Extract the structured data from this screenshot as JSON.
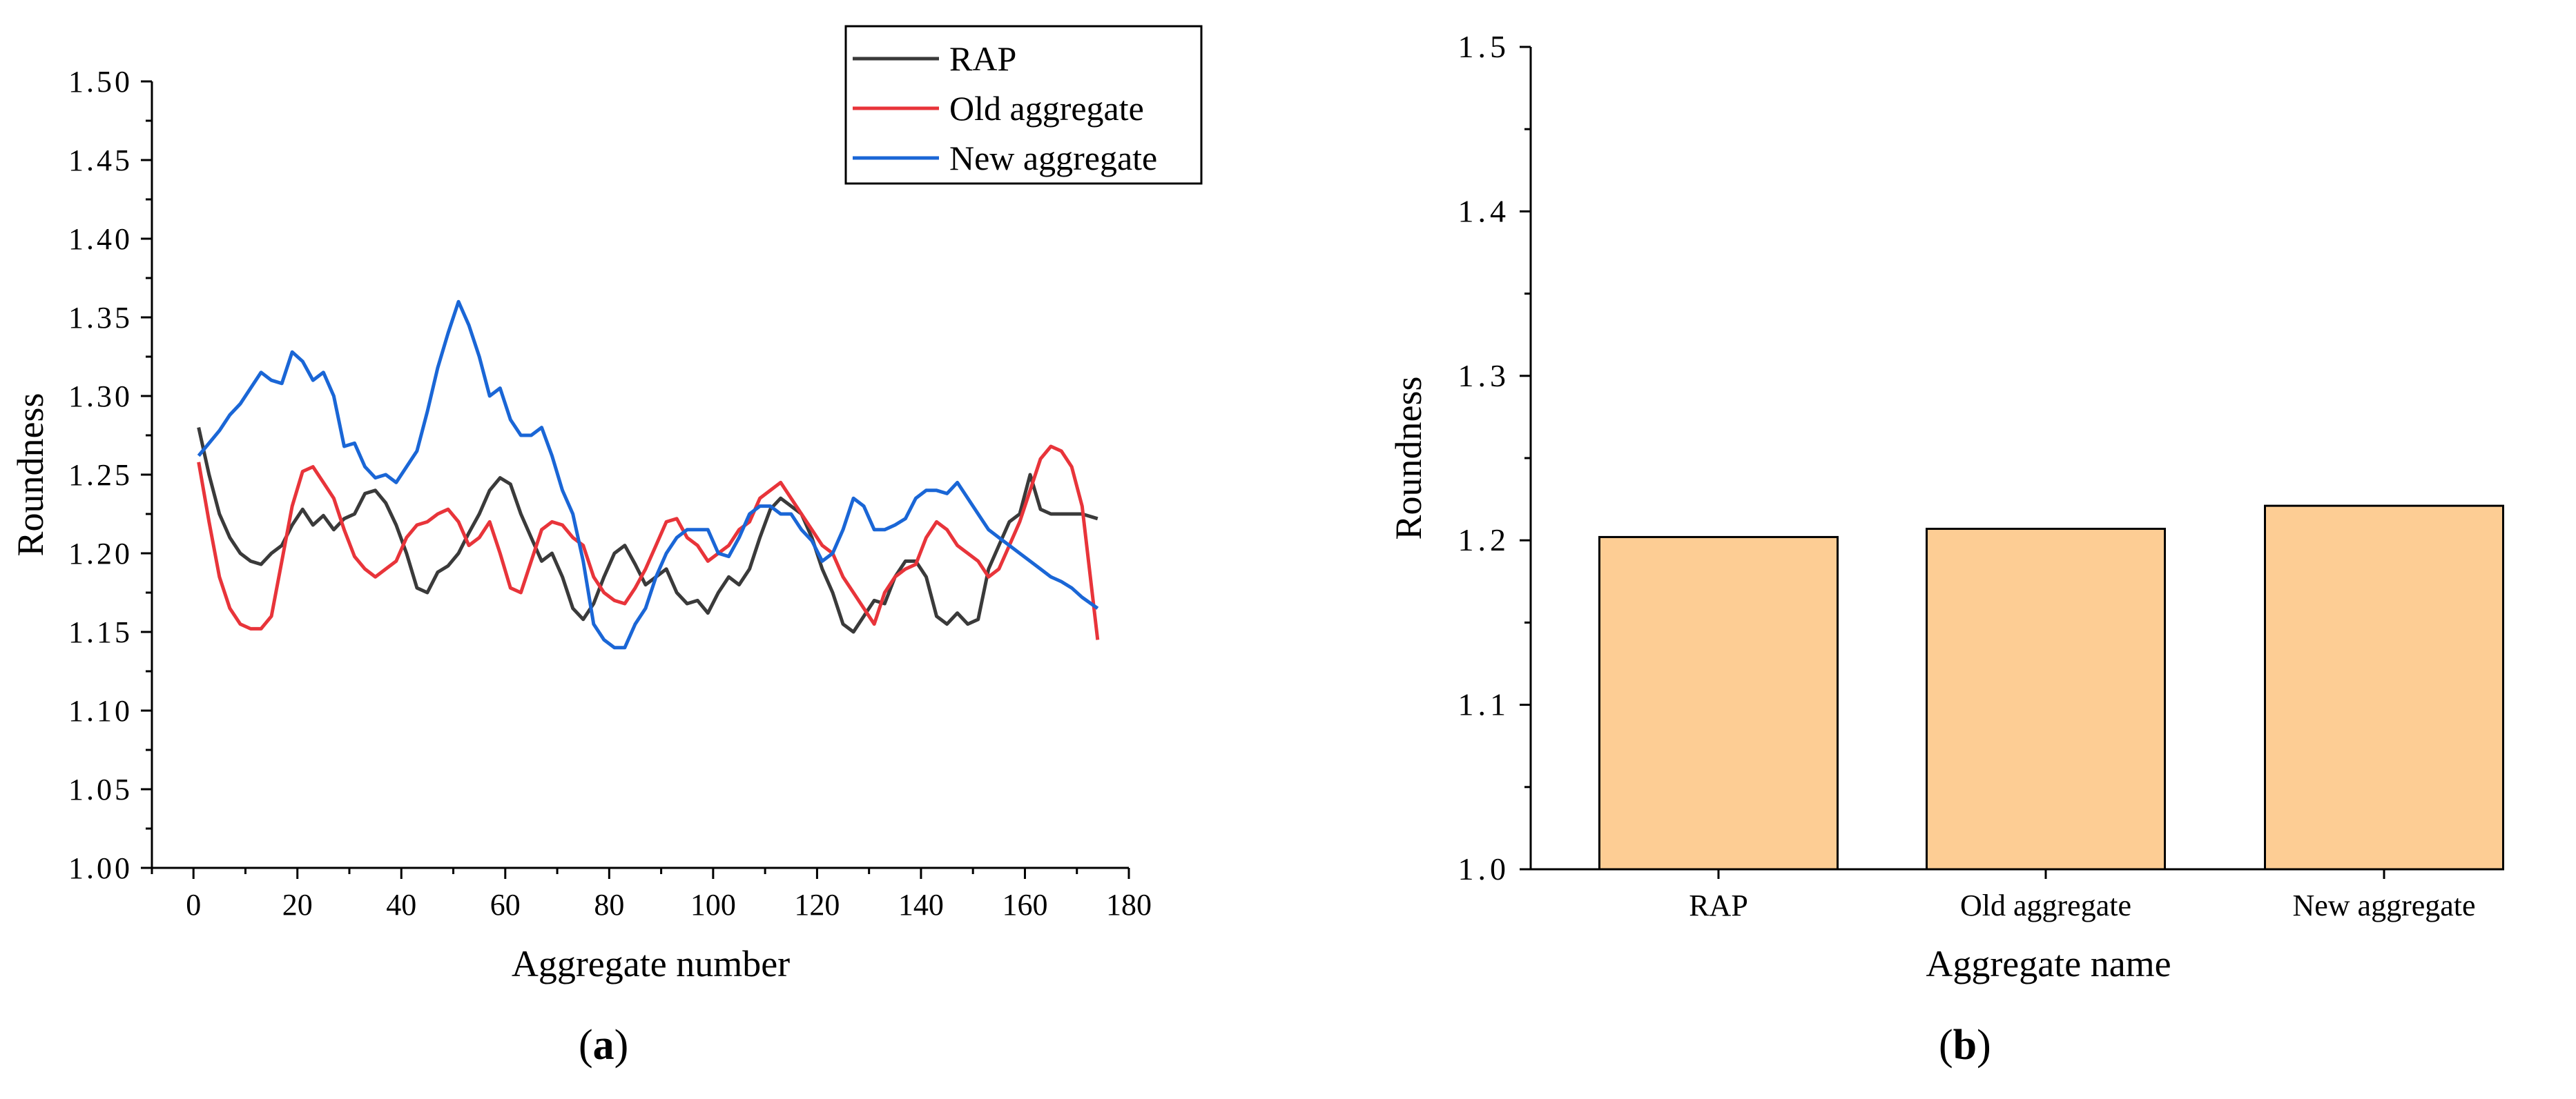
{
  "charts": [
    {
      "id": "a",
      "label": "a",
      "type": "line",
      "xlabel": "Aggregate number",
      "ylabel": "Roundness",
      "xlim": [
        -8,
        180
      ],
      "ylim": [
        1.0,
        1.5
      ],
      "xticks": [
        0,
        20,
        40,
        60,
        80,
        100,
        120,
        140,
        160,
        180
      ],
      "yticks": [
        "1.00",
        "1.05",
        "1.10",
        "1.15",
        "1.20",
        "1.25",
        "1.30",
        "1.35",
        "1.40",
        "1.45",
        "1.50"
      ],
      "legend_position": "top-right",
      "series": [
        {
          "name": "RAP",
          "color": "#3a3a3a",
          "x": [
            1,
            3,
            5,
            7,
            9,
            11,
            13,
            15,
            17,
            19,
            21,
            23,
            25,
            27,
            29,
            31,
            33,
            35,
            37,
            39,
            41,
            43,
            45,
            47,
            49,
            51,
            53,
            55,
            57,
            59,
            61,
            63,
            65,
            67,
            69,
            71,
            73,
            75,
            77,
            79,
            81,
            83,
            85,
            87,
            89,
            91,
            93,
            95,
            97,
            99,
            101,
            103,
            105,
            107,
            109,
            111,
            113,
            115,
            117,
            119,
            121,
            123,
            125,
            127,
            129,
            131,
            133,
            135,
            137,
            139,
            141,
            143,
            145,
            147,
            149,
            151,
            153,
            155,
            157,
            159,
            161,
            163,
            165,
            167,
            169,
            171,
            174
          ],
          "y": [
            1.28,
            1.25,
            1.225,
            1.21,
            1.2,
            1.195,
            1.193,
            1.2,
            1.205,
            1.218,
            1.228,
            1.218,
            1.224,
            1.215,
            1.222,
            1.225,
            1.238,
            1.24,
            1.232,
            1.218,
            1.2,
            1.178,
            1.175,
            1.188,
            1.192,
            1.2,
            1.213,
            1.225,
            1.24,
            1.248,
            1.244,
            1.225,
            1.21,
            1.195,
            1.2,
            1.185,
            1.165,
            1.158,
            1.168,
            1.185,
            1.2,
            1.205,
            1.193,
            1.18,
            1.185,
            1.19,
            1.175,
            1.168,
            1.17,
            1.162,
            1.175,
            1.185,
            1.18,
            1.19,
            1.21,
            1.228,
            1.235,
            1.23,
            1.225,
            1.21,
            1.19,
            1.175,
            1.155,
            1.15,
            1.16,
            1.17,
            1.168,
            1.185,
            1.195,
            1.195,
            1.185,
            1.16,
            1.155,
            1.162,
            1.155,
            1.158,
            1.19,
            1.205,
            1.22,
            1.225,
            1.25,
            1.228,
            1.225,
            1.225,
            1.225,
            1.225,
            1.222
          ]
        },
        {
          "name": "Old aggregate",
          "color": "#e8343a",
          "x": [
            1,
            3,
            5,
            7,
            9,
            11,
            13,
            15,
            17,
            19,
            21,
            23,
            25,
            27,
            29,
            31,
            33,
            35,
            37,
            39,
            41,
            43,
            45,
            47,
            49,
            51,
            53,
            55,
            57,
            59,
            61,
            63,
            65,
            67,
            69,
            71,
            73,
            75,
            77,
            79,
            81,
            83,
            85,
            87,
            89,
            91,
            93,
            95,
            97,
            99,
            101,
            103,
            105,
            107,
            109,
            111,
            113,
            115,
            117,
            119,
            121,
            123,
            125,
            127,
            129,
            131,
            133,
            135,
            137,
            139,
            141,
            143,
            145,
            147,
            149,
            151,
            153,
            155,
            157,
            159,
            161,
            163,
            165,
            167,
            169,
            171,
            174
          ],
          "y": [
            1.258,
            1.22,
            1.185,
            1.165,
            1.155,
            1.152,
            1.152,
            1.16,
            1.195,
            1.23,
            1.252,
            1.255,
            1.245,
            1.235,
            1.215,
            1.198,
            1.19,
            1.185,
            1.19,
            1.195,
            1.21,
            1.218,
            1.22,
            1.225,
            1.228,
            1.22,
            1.205,
            1.21,
            1.22,
            1.2,
            1.178,
            1.175,
            1.195,
            1.215,
            1.22,
            1.218,
            1.21,
            1.205,
            1.185,
            1.175,
            1.17,
            1.168,
            1.178,
            1.19,
            1.205,
            1.22,
            1.222,
            1.21,
            1.205,
            1.195,
            1.2,
            1.205,
            1.215,
            1.22,
            1.235,
            1.24,
            1.245,
            1.235,
            1.225,
            1.215,
            1.205,
            1.2,
            1.185,
            1.175,
            1.165,
            1.155,
            1.175,
            1.185,
            1.19,
            1.193,
            1.21,
            1.22,
            1.215,
            1.205,
            1.2,
            1.195,
            1.185,
            1.19,
            1.205,
            1.22,
            1.24,
            1.26,
            1.268,
            1.265,
            1.255,
            1.23,
            1.145
          ]
        },
        {
          "name": "New aggregate",
          "color": "#1a66d6",
          "x": [
            1,
            3,
            5,
            7,
            9,
            11,
            13,
            15,
            17,
            19,
            21,
            23,
            25,
            27,
            29,
            31,
            33,
            35,
            37,
            39,
            41,
            43,
            45,
            47,
            49,
            51,
            53,
            55,
            57,
            59,
            61,
            63,
            65,
            67,
            69,
            71,
            73,
            75,
            77,
            79,
            81,
            83,
            85,
            87,
            89,
            91,
            93,
            95,
            97,
            99,
            101,
            103,
            105,
            107,
            109,
            111,
            113,
            115,
            117,
            119,
            121,
            123,
            125,
            127,
            129,
            131,
            133,
            135,
            137,
            139,
            141,
            143,
            145,
            147,
            149,
            151,
            153,
            155,
            157,
            159,
            161,
            163,
            165,
            167,
            169,
            171,
            174
          ],
          "y": [
            1.262,
            1.27,
            1.278,
            1.288,
            1.295,
            1.305,
            1.315,
            1.31,
            1.308,
            1.328,
            1.322,
            1.31,
            1.315,
            1.3,
            1.268,
            1.27,
            1.255,
            1.248,
            1.25,
            1.245,
            1.255,
            1.265,
            1.29,
            1.318,
            1.34,
            1.36,
            1.345,
            1.325,
            1.3,
            1.305,
            1.285,
            1.275,
            1.275,
            1.28,
            1.262,
            1.24,
            1.225,
            1.195,
            1.155,
            1.145,
            1.14,
            1.14,
            1.155,
            1.165,
            1.185,
            1.2,
            1.21,
            1.215,
            1.215,
            1.215,
            1.2,
            1.198,
            1.21,
            1.225,
            1.23,
            1.23,
            1.225,
            1.225,
            1.215,
            1.208,
            1.195,
            1.2,
            1.215,
            1.235,
            1.23,
            1.215,
            1.215,
            1.218,
            1.222,
            1.235,
            1.24,
            1.24,
            1.238,
            1.245,
            1.235,
            1.225,
            1.215,
            1.21,
            1.205,
            1.2,
            1.195,
            1.19,
            1.185,
            1.182,
            1.178,
            1.172,
            1.165
          ]
        }
      ]
    },
    {
      "id": "b",
      "label": "b",
      "type": "bar",
      "xlabel": "Aggregate name",
      "ylabel": "Roundness",
      "ylim": [
        1.0,
        1.5
      ],
      "yticks": [
        "1.0",
        "1.1",
        "1.2",
        "1.3",
        "1.4",
        "1.5"
      ],
      "categories": [
        "RAP",
        "Old aggregate",
        "New aggregate"
      ],
      "values": [
        1.202,
        1.207,
        1.221
      ],
      "bar_color": "#fdcd94"
    }
  ]
}
